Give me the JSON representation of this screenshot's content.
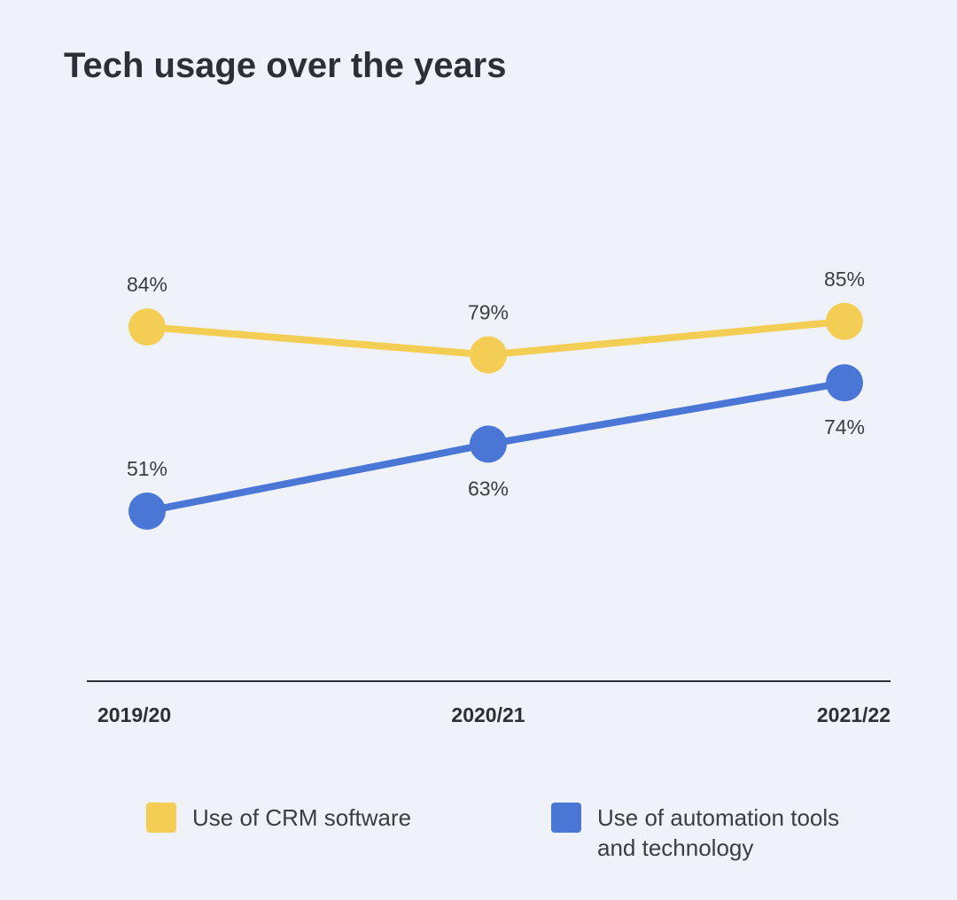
{
  "chart_data": {
    "type": "line",
    "title": "Tech usage over the years",
    "categories": [
      "2019/20",
      "2020/21",
      "2021/22"
    ],
    "series": [
      {
        "name": "Use of CRM software",
        "values": [
          84,
          79,
          85
        ],
        "labels": [
          "84%",
          "79%",
          "85%"
        ],
        "color": "#f4cd55"
      },
      {
        "name": "Use of automation tools and technology",
        "values": [
          51,
          63,
          74
        ],
        "labels": [
          "51%",
          "63%",
          "74%"
        ],
        "color": "#4a76d6"
      }
    ],
    "unit": "%",
    "grid": false,
    "legend": "bottom"
  }
}
